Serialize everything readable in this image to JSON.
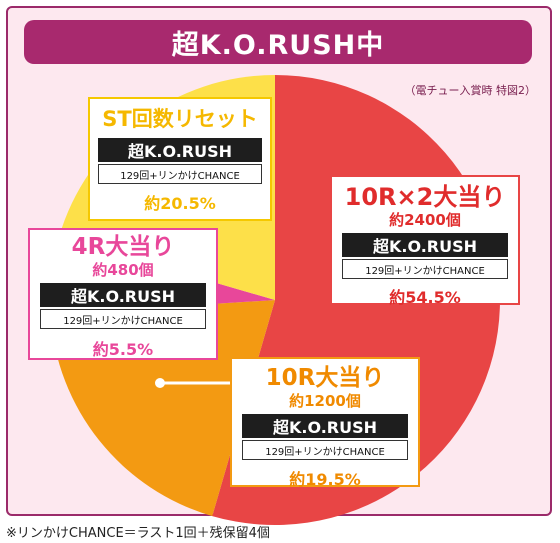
{
  "title": "超K.O.RUSH中",
  "note": "（電チュー入賞時 特図2）",
  "footnote": "※リンかけCHANCE＝ラスト1回＋残保留4個",
  "colors": {
    "red": "#e84545",
    "orange": "#f39a12",
    "yellow": "#fde049",
    "pink": "#e8479a",
    "frame": "#a8296e"
  },
  "chart_data": {
    "type": "pie",
    "slices": [
      {
        "name": "10R×2大当り",
        "sub": "約2400個",
        "mode": "超K.O.RUSH",
        "cond": "129回+リンかけCHANCE",
        "pct_label": "約54.5%",
        "value": 54.5,
        "color": "#e84545"
      },
      {
        "name": "10R大当り",
        "sub": "約1200個",
        "mode": "超K.O.RUSH",
        "cond": "129回+リンかけCHANCE",
        "pct_label": "約19.5%",
        "value": 19.5,
        "color": "#f39a12"
      },
      {
        "name": "4R大当り",
        "sub": "約480個",
        "mode": "超K.O.RUSH",
        "cond": "129回+リンかけCHANCE",
        "pct_label": "約5.5%",
        "value": 5.5,
        "color": "#e8479a"
      },
      {
        "name": "ST回数リセット",
        "sub": "",
        "mode": "超K.O.RUSH",
        "cond": "129回+リンかけCHANCE",
        "pct_label": "約20.5%",
        "value": 20.5,
        "color": "#fde049"
      }
    ]
  }
}
